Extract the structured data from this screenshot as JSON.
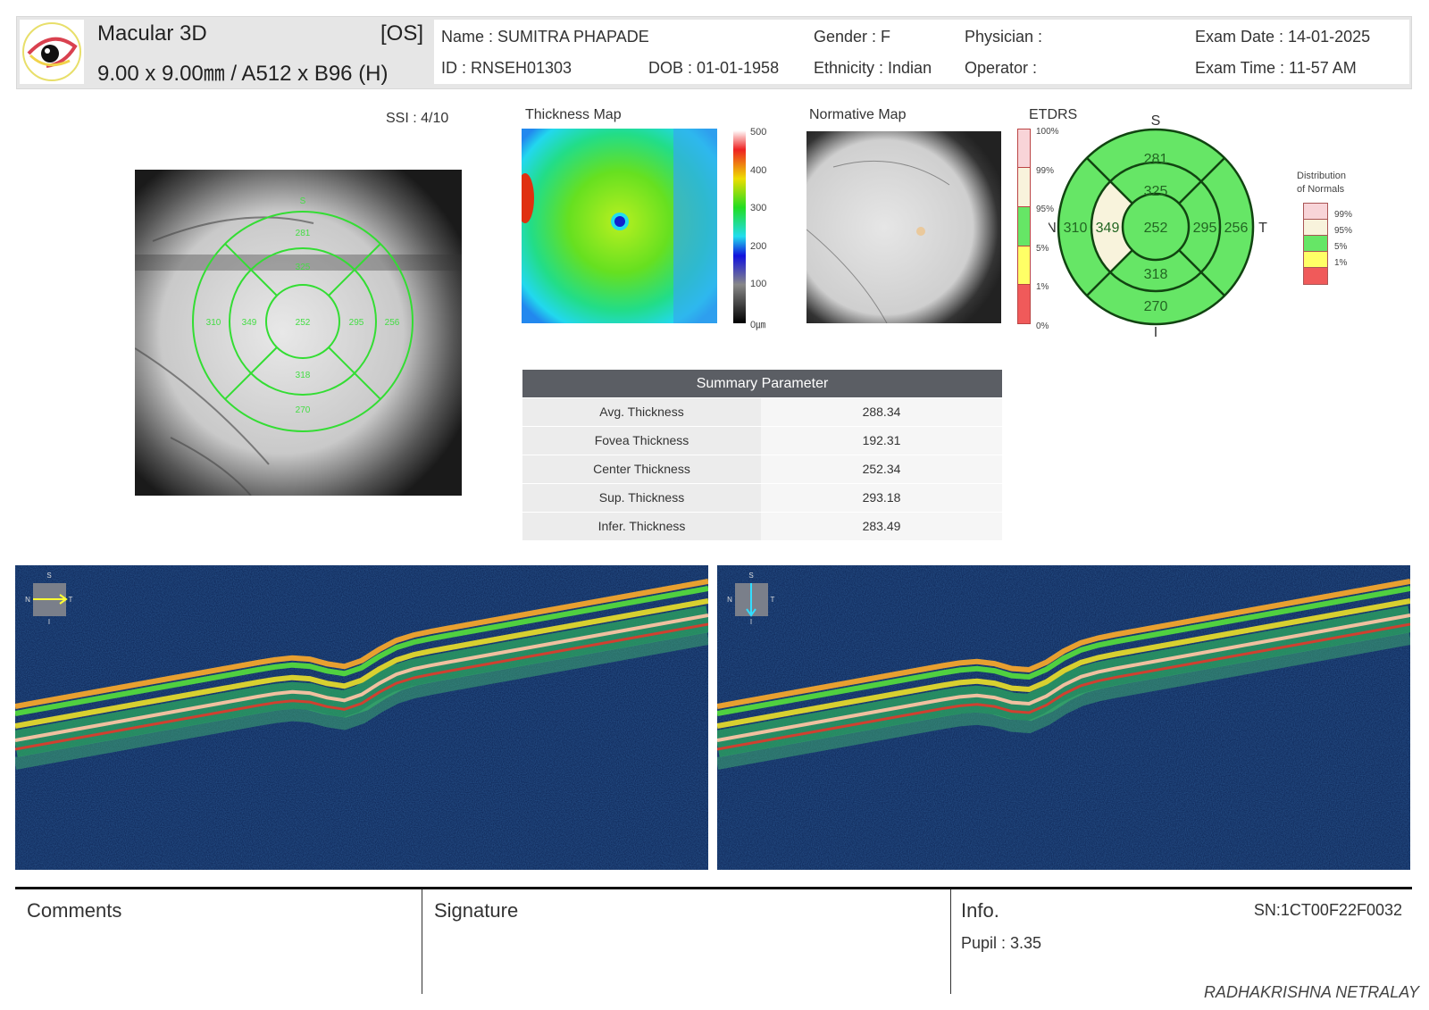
{
  "header": {
    "title": "Macular 3D",
    "eye": "[OS]",
    "scan": "9.00 x 9.00㎜ / A512 x B96 (H)",
    "name": "Name : SUMITRA PHAPADE",
    "id": "ID : RNSEH01303",
    "dob": "DOB : 01-01-1958",
    "gender": "Gender : F",
    "ethnicity": "Ethnicity : Indian",
    "physician": "Physician :",
    "operator": "Operator :",
    "exam_date": "Exam Date : 14-01-2025",
    "exam_time": "Exam Time : 11-57 AM"
  },
  "ssi": "SSI : 4/10",
  "thickness_map": {
    "label": "Thickness Map",
    "scale": [
      "500",
      "400",
      "300",
      "200",
      "100",
      "0㎛"
    ]
  },
  "normative_map": {
    "label": "Normative Map"
  },
  "etdrs": {
    "label": "ETDRS",
    "scale": [
      "100%",
      "99%",
      "95%",
      "5%",
      "1%",
      "0%"
    ],
    "directions": {
      "s": "S",
      "i": "I",
      "n": "N",
      "t": "T"
    },
    "values": {
      "outer_s": "281",
      "inner_s": "325",
      "outer_n": "310",
      "inner_n": "349",
      "center": "252",
      "inner_t": "295",
      "outer_t": "256",
      "inner_i": "318",
      "outer_i": "270"
    },
    "colors": {
      "normal": "#66e666",
      "borderline_high": "#f8f3dc",
      "high": "#f8d4d8",
      "borderline_low": "#ffff66",
      "low": "#f05a5a"
    }
  },
  "distribution": {
    "title1": "Distribution",
    "title2": "of Normals",
    "labels": [
      "99%",
      "95%",
      "5%",
      "1%"
    ]
  },
  "summary": {
    "title": "Summary Parameter",
    "rows": [
      {
        "k": "Avg. Thickness",
        "v": "288.34"
      },
      {
        "k": "Fovea Thickness",
        "v": "192.31"
      },
      {
        "k": "Center Thickness",
        "v": "252.34"
      },
      {
        "k": "Sup. Thickness",
        "v": "293.18"
      },
      {
        "k": "Infer. Thickness",
        "v": "283.49"
      }
    ]
  },
  "bscans": [
    {
      "s": "S",
      "n": "N",
      "t": "T",
      "i": "I",
      "direction": "horizontal",
      "arrow_color": "#ffff33"
    },
    {
      "s": "S",
      "n": "N",
      "t": "T",
      "i": "I",
      "direction": "vertical",
      "arrow_color": "#33ddff"
    }
  ],
  "footer": {
    "comments": "Comments",
    "signature": "Signature",
    "info": "Info.",
    "sn": "SN:1CT00F22F0032",
    "pupil": "Pupil : 3.35",
    "clinic": "RADHAKRISHNA NETRALAY"
  }
}
